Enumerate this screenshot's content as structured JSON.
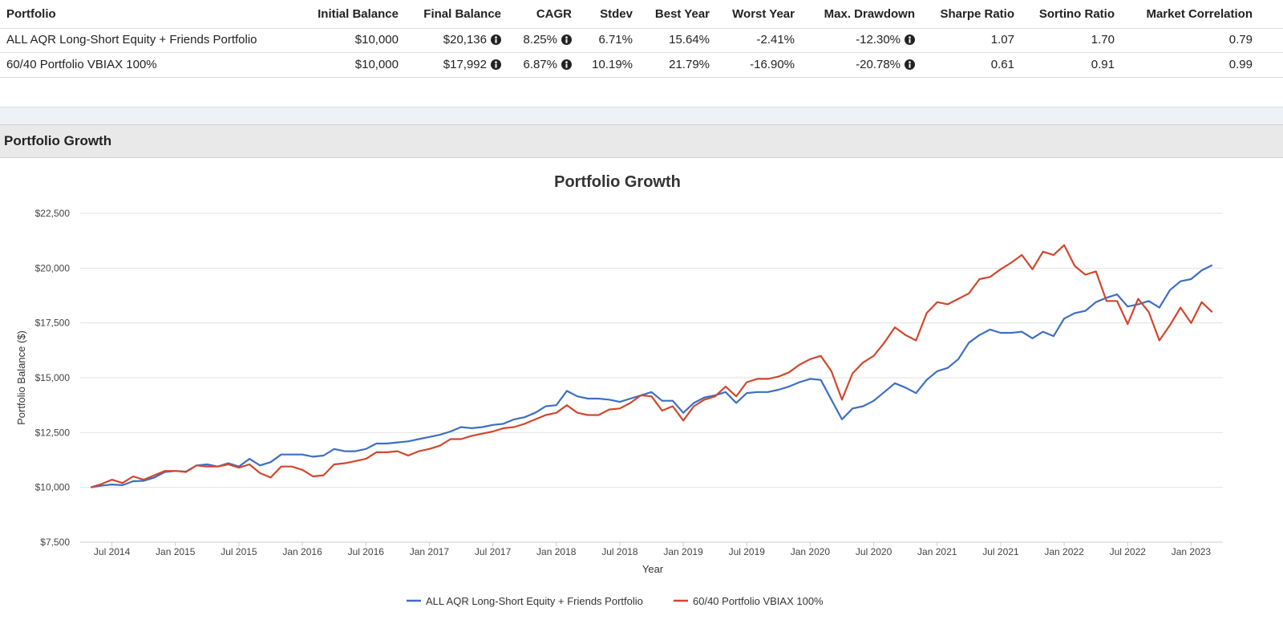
{
  "table": {
    "columns": [
      "Portfolio",
      "Initial Balance",
      "Final Balance",
      "CAGR",
      "Stdev",
      "Best Year",
      "Worst Year",
      "Max. Drawdown",
      "Sharpe Ratio",
      "Sortino Ratio",
      "Market Correlation"
    ],
    "rows": [
      [
        "ALL AQR Long-Short Equity + Friends Portfolio",
        "$10,000",
        "$20,136",
        "8.25%",
        "6.71%",
        "15.64%",
        "-2.41%",
        "-12.30%",
        "1.07",
        "1.70",
        "0.79"
      ],
      [
        "60/40 Portfolio VBIAX 100%",
        "$10,000",
        "$17,992",
        "6.87%",
        "10.19%",
        "21.79%",
        "-16.90%",
        "-20.78%",
        "0.61",
        "0.91",
        "0.99"
      ]
    ]
  },
  "section_title": "Portfolio Growth",
  "chart_data": {
    "type": "line",
    "title": "Portfolio Growth",
    "x_label": "Year",
    "y_label": "Portfolio Balance ($)",
    "x": [
      "2014-05",
      "2014-06",
      "2014-07",
      "2014-08",
      "2014-09",
      "2014-10",
      "2014-11",
      "2014-12",
      "2015-01",
      "2015-02",
      "2015-03",
      "2015-04",
      "2015-05",
      "2015-06",
      "2015-07",
      "2015-08",
      "2015-09",
      "2015-10",
      "2015-11",
      "2015-12",
      "2016-01",
      "2016-02",
      "2016-03",
      "2016-04",
      "2016-05",
      "2016-06",
      "2016-07",
      "2016-08",
      "2016-09",
      "2016-10",
      "2016-11",
      "2016-12",
      "2017-01",
      "2017-02",
      "2017-03",
      "2017-04",
      "2017-05",
      "2017-06",
      "2017-07",
      "2017-08",
      "2017-09",
      "2017-10",
      "2017-11",
      "2017-12",
      "2018-01",
      "2018-02",
      "2018-03",
      "2018-04",
      "2018-05",
      "2018-06",
      "2018-07",
      "2018-08",
      "2018-09",
      "2018-10",
      "2018-11",
      "2018-12",
      "2019-01",
      "2019-02",
      "2019-03",
      "2019-04",
      "2019-05",
      "2019-06",
      "2019-07",
      "2019-08",
      "2019-09",
      "2019-10",
      "2019-11",
      "2019-12",
      "2020-01",
      "2020-02",
      "2020-03",
      "2020-04",
      "2020-05",
      "2020-06",
      "2020-07",
      "2020-08",
      "2020-09",
      "2020-10",
      "2020-11",
      "2020-12",
      "2021-01",
      "2021-02",
      "2021-03",
      "2021-04",
      "2021-05",
      "2021-06",
      "2021-07",
      "2021-08",
      "2021-09",
      "2021-10",
      "2021-11",
      "2021-12",
      "2022-01",
      "2022-02",
      "2022-03",
      "2022-04",
      "2022-05",
      "2022-06",
      "2022-07",
      "2022-08",
      "2022-09",
      "2022-10",
      "2022-11",
      "2022-12",
      "2023-01",
      "2023-02",
      "2023-03"
    ],
    "xlim": [
      "2014-04",
      "2023-04"
    ],
    "xticks": [
      {
        "value": "2014-07",
        "label": "Jul 2014"
      },
      {
        "value": "2015-01",
        "label": "Jan 2015"
      },
      {
        "value": "2015-07",
        "label": "Jul 2015"
      },
      {
        "value": "2016-01",
        "label": "Jan 2016"
      },
      {
        "value": "2016-07",
        "label": "Jul 2016"
      },
      {
        "value": "2017-01",
        "label": "Jan 2017"
      },
      {
        "value": "2017-07",
        "label": "Jul 2017"
      },
      {
        "value": "2018-01",
        "label": "Jan 2018"
      },
      {
        "value": "2018-07",
        "label": "Jul 2018"
      },
      {
        "value": "2019-01",
        "label": "Jan 2019"
      },
      {
        "value": "2019-07",
        "label": "Jul 2019"
      },
      {
        "value": "2020-01",
        "label": "Jan 2020"
      },
      {
        "value": "2020-07",
        "label": "Jul 2020"
      },
      {
        "value": "2021-01",
        "label": "Jan 2021"
      },
      {
        "value": "2021-07",
        "label": "Jul 2021"
      },
      {
        "value": "2022-01",
        "label": "Jan 2022"
      },
      {
        "value": "2022-07",
        "label": "Jul 2022"
      },
      {
        "value": "2023-01",
        "label": "Jan 2023"
      }
    ],
    "ylim": [
      7500,
      22500
    ],
    "yticks": [
      {
        "value": 7500,
        "label": "$7,500"
      },
      {
        "value": 10000,
        "label": "$10,000"
      },
      {
        "value": 12500,
        "label": "$12,500"
      },
      {
        "value": 15000,
        "label": "$15,000"
      },
      {
        "value": 17500,
        "label": "$17,500"
      },
      {
        "value": 20000,
        "label": "$20,000"
      },
      {
        "value": 22500,
        "label": "$22,500"
      }
    ],
    "grid": true,
    "legend": "bottom",
    "series": [
      {
        "name": "ALL AQR Long-Short Equity + Friends Portfolio",
        "color": "#3d6fc3",
        "values": [
          10000,
          10080,
          10130,
          10100,
          10280,
          10300,
          10450,
          10700,
          10750,
          10720,
          11000,
          11050,
          10950,
          11100,
          10950,
          11300,
          11000,
          11150,
          11500,
          11500,
          11500,
          11400,
          11450,
          11750,
          11650,
          11650,
          11750,
          12000,
          12000,
          12050,
          12100,
          12200,
          12300,
          12400,
          12550,
          12750,
          12700,
          12750,
          12850,
          12900,
          13100,
          13200,
          13400,
          13700,
          13750,
          14400,
          14150,
          14050,
          14050,
          14000,
          13900,
          14050,
          14200,
          14350,
          13950,
          13950,
          13400,
          13850,
          14100,
          14200,
          14350,
          13850,
          14300,
          14350,
          14350,
          14450,
          14600,
          14800,
          14950,
          14900,
          14000,
          13100,
          13600,
          13700,
          13950,
          14350,
          14750,
          14550,
          14300,
          14900,
          15300,
          15450,
          15850,
          16600,
          16950,
          17200,
          17050,
          17050,
          17100,
          16800,
          17100,
          16900,
          17700,
          17950,
          18050,
          18450,
          18650,
          18800,
          18250,
          18350,
          18500,
          18200,
          19000,
          19400,
          19500,
          19900,
          20136
        ]
      },
      {
        "name": "60/40 Portfolio VBIAX 100%",
        "color": "#d2472d",
        "values": [
          10000,
          10150,
          10350,
          10200,
          10500,
          10350,
          10550,
          10750,
          10750,
          10700,
          11000,
          10950,
          10950,
          11050,
          10900,
          11050,
          10650,
          10450,
          10950,
          10950,
          10800,
          10500,
          10550,
          11050,
          11100,
          11200,
          11300,
          11600,
          11600,
          11650,
          11450,
          11650,
          11750,
          11900,
          12200,
          12200,
          12350,
          12450,
          12550,
          12700,
          12750,
          12900,
          13100,
          13300,
          13400,
          13750,
          13400,
          13300,
          13300,
          13550,
          13600,
          13850,
          14200,
          14150,
          13500,
          13700,
          13050,
          13700,
          14000,
          14150,
          14600,
          14150,
          14800,
          14950,
          14950,
          15050,
          15250,
          15600,
          15850,
          16000,
          15300,
          14000,
          15200,
          15700,
          16000,
          16600,
          17300,
          16950,
          16700,
          17950,
          18450,
          18350,
          18600,
          18850,
          19500,
          19600,
          19950,
          20250,
          20600,
          19950,
          20750,
          20600,
          21050,
          20100,
          19700,
          19850,
          18500,
          18500,
          17450,
          18600,
          18000,
          16700,
          17400,
          18200,
          17500,
          18450,
          17992
        ]
      }
    ]
  }
}
